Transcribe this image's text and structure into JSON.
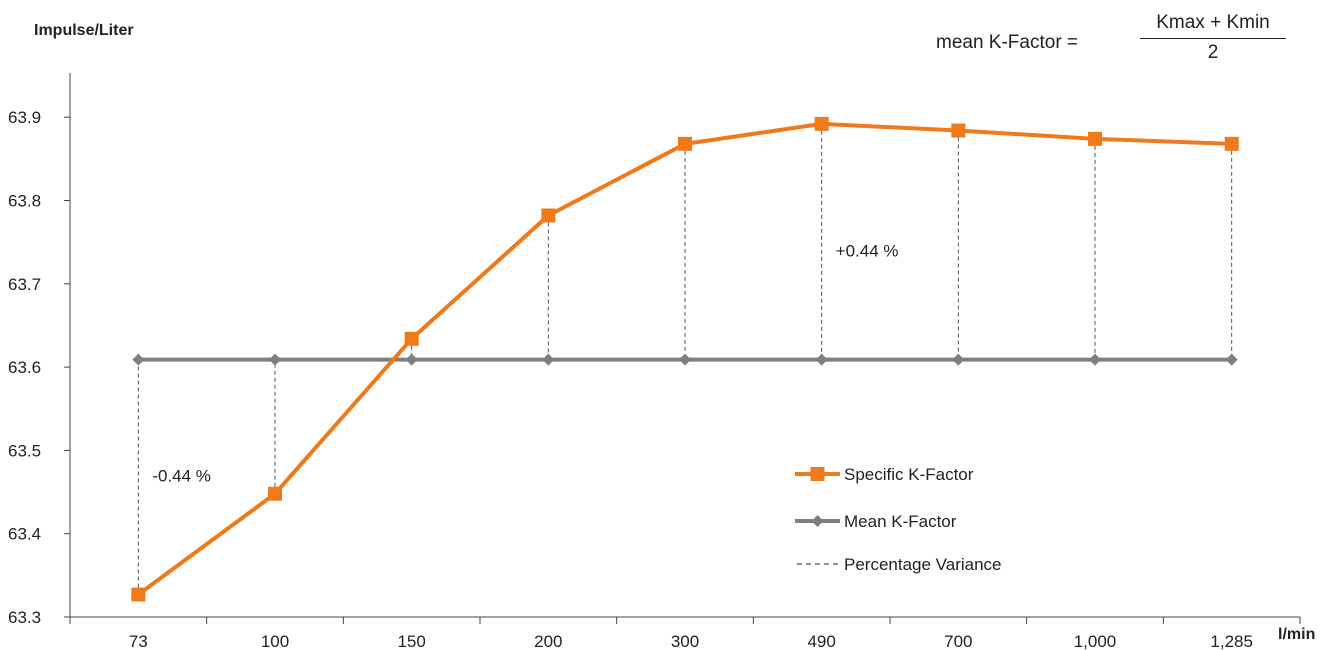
{
  "chart_data": {
    "type": "line",
    "ylabel": "Impulse/Liter",
    "xlabel": "l/min",
    "categories": [
      "73",
      "100",
      "150",
      "200",
      "300",
      "490",
      "700",
      "1,000",
      "1,285"
    ],
    "ylim": [
      63.3,
      63.95
    ],
    "yticks": [
      63.3,
      63.4,
      63.5,
      63.6,
      63.7,
      63.8,
      63.9
    ],
    "ytick_labels": [
      "63.3",
      "63.4",
      "63.5",
      "63.6",
      "63.7",
      "63.8",
      "63.9"
    ],
    "series": [
      {
        "name": "Specific K-Factor",
        "color": "#f07a1a",
        "marker": "square",
        "values": [
          63.327,
          63.448,
          63.634,
          63.782,
          63.868,
          63.892,
          63.884,
          63.874,
          63.868
        ]
      },
      {
        "name": "Mean K-Factor",
        "color": "#7f7f7f",
        "marker": "diamond",
        "values": [
          63.609,
          63.609,
          63.609,
          63.609,
          63.609,
          63.609,
          63.609,
          63.609,
          63.609
        ]
      }
    ],
    "variance_legend": "Percentage Variance",
    "annotations": [
      {
        "text": "-0.44 %",
        "x": "73",
        "y": 63.47
      },
      {
        "text": "+0.44 %",
        "x": "490",
        "y": 63.74
      }
    ],
    "formula": {
      "lhs": "mean K-Factor =",
      "numerator": "Kmax + Kmin",
      "denominator": "2"
    },
    "legend_position": "bottom-right",
    "grid": false
  }
}
